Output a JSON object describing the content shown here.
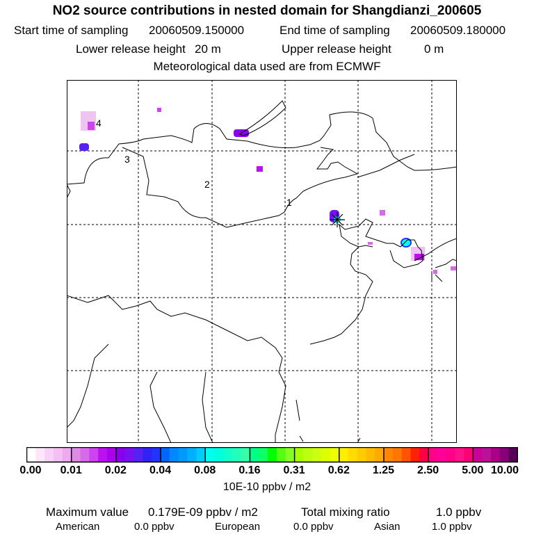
{
  "header": {
    "title": "NO2 source contributions in nested domain for Shangdianzi_200605",
    "start_label": "Start time of sampling",
    "start_value": "20060509.150000",
    "end_label": "End time of sampling",
    "end_value": "20060509.180000",
    "lower_label": "Lower release height",
    "lower_value": "20 m",
    "upper_label": "Upper release height",
    "upper_value": "0 m",
    "met": "Meteorological data used are from ECMWF"
  },
  "map": {
    "contour_labels": [
      "1",
      "2",
      "3",
      "4"
    ],
    "station_marker": "station-star-icon"
  },
  "colorbar": {
    "ticks": [
      "0.00",
      "0.01",
      "0.02",
      "0.04",
      "0.08",
      "0.16",
      "0.31",
      "0.62",
      "1.25",
      "2.50",
      "5.00",
      "10.00"
    ],
    "unit": "10E-10 ppbv / m2",
    "colors": [
      [
        "#ffffff",
        "#fbe6fb",
        "#f6d2f6",
        "#f2c0f2",
        "#eeaaee"
      ],
      [
        "#e08ae8",
        "#d66ae8",
        "#cc44ee",
        "#bb11ee",
        "#aa00ee"
      ],
      [
        "#8800ee",
        "#7711f0",
        "#5522f0",
        "#3322f5",
        "#2233ff"
      ],
      [
        "#0066ff",
        "#0088ff",
        "#0099ff",
        "#00b0ff",
        "#00ccff"
      ],
      [
        "#00ffee",
        "#00ffdd",
        "#11ffcc",
        "#22ffbb",
        "#33ffaa"
      ],
      [
        "#00ff88",
        "#11ff66",
        "#00ff00",
        "#55ff11",
        "#88ff22"
      ],
      [
        "#aaff00",
        "#bbff11",
        "#ccff11",
        "#ddff00",
        "#eeff00"
      ],
      [
        "#ffee00",
        "#ffdd00",
        "#ffcc00",
        "#ffbb00",
        "#ffaa00"
      ],
      [
        "#ff8800",
        "#ff7700",
        "#ff5500",
        "#ff2200",
        "#ff0044"
      ],
      [
        "#ff0088",
        "#ff0099",
        "#ff0088",
        "#ff1188",
        "#ff0077"
      ],
      [
        "#cc0099",
        "#bb1199",
        "#aa0088",
        "#880077",
        "#550055"
      ]
    ]
  },
  "footer": {
    "max_label": "Maximum value",
    "max_value": "0.179E-09 ppbv / m2",
    "total_label": "Total mixing ratio",
    "total_value": "1.0 ppbv",
    "american_label": "American",
    "american_value": "0.0 ppbv",
    "european_label": "European",
    "european_value": "0.0 ppbv",
    "asian_label": "Asian",
    "asian_value": "1.0 ppbv"
  }
}
